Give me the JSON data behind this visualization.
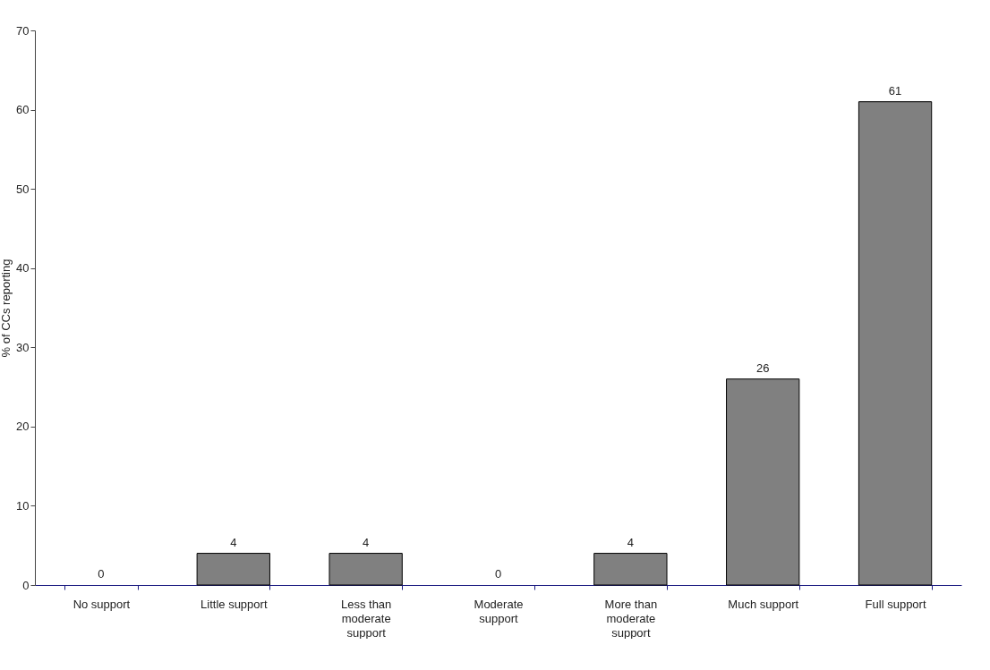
{
  "chart_data": {
    "type": "bar",
    "ylabel": "% of CCs reporting",
    "categories": [
      "No support",
      "Little support",
      "Less than moderate support",
      "Moderate support",
      "More than moderate support",
      "Much support",
      "Full support"
    ],
    "values": [
      0,
      4,
      4,
      0,
      4,
      26,
      61
    ],
    "color": "#808080",
    "ylim": [
      0,
      70
    ],
    "yticks": [
      0,
      10,
      20,
      30,
      40,
      50,
      60,
      70
    ],
    "data_labels": true,
    "grid": false
  }
}
